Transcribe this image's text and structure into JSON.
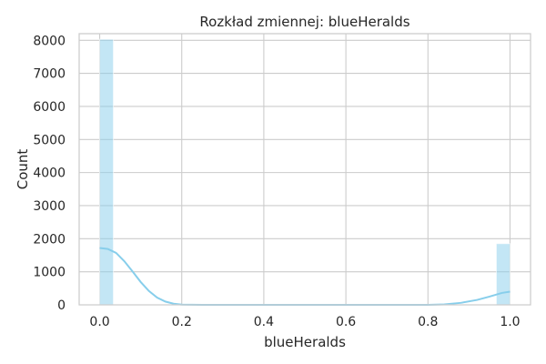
{
  "chart_data": {
    "type": "histogram",
    "title": "Rozkład zmiennej: blueHeralds",
    "xlabel": "blueHeralds",
    "ylabel": "Count",
    "xlim": [
      -0.05,
      1.05
    ],
    "ylim": [
      0,
      8200
    ],
    "x_ticks": [
      "0.0",
      "0.2",
      "0.4",
      "0.6",
      "0.8",
      "1.0"
    ],
    "y_ticks": [
      "0",
      "1000",
      "2000",
      "3000",
      "4000",
      "5000",
      "6000",
      "7000",
      "8000"
    ],
    "grid": true,
    "bar_color": "#87ceeb",
    "kde_color": "#87ceeb",
    "bins": [
      {
        "x0": 0.0,
        "x1": 0.03333,
        "count": 8030
      },
      {
        "x0": 0.96667,
        "x1": 1.0,
        "count": 1850
      }
    ],
    "kde": [
      [
        0.0,
        1720
      ],
      [
        0.02,
        1690
      ],
      [
        0.04,
        1570
      ],
      [
        0.06,
        1320
      ],
      [
        0.08,
        1010
      ],
      [
        0.1,
        690
      ],
      [
        0.12,
        420
      ],
      [
        0.14,
        220
      ],
      [
        0.16,
        100
      ],
      [
        0.18,
        35
      ],
      [
        0.2,
        8
      ],
      [
        0.25,
        0
      ],
      [
        0.8,
        0
      ],
      [
        0.84,
        15
      ],
      [
        0.88,
        60
      ],
      [
        0.92,
        150
      ],
      [
        0.95,
        250
      ],
      [
        0.98,
        360
      ],
      [
        1.0,
        400
      ]
    ]
  }
}
